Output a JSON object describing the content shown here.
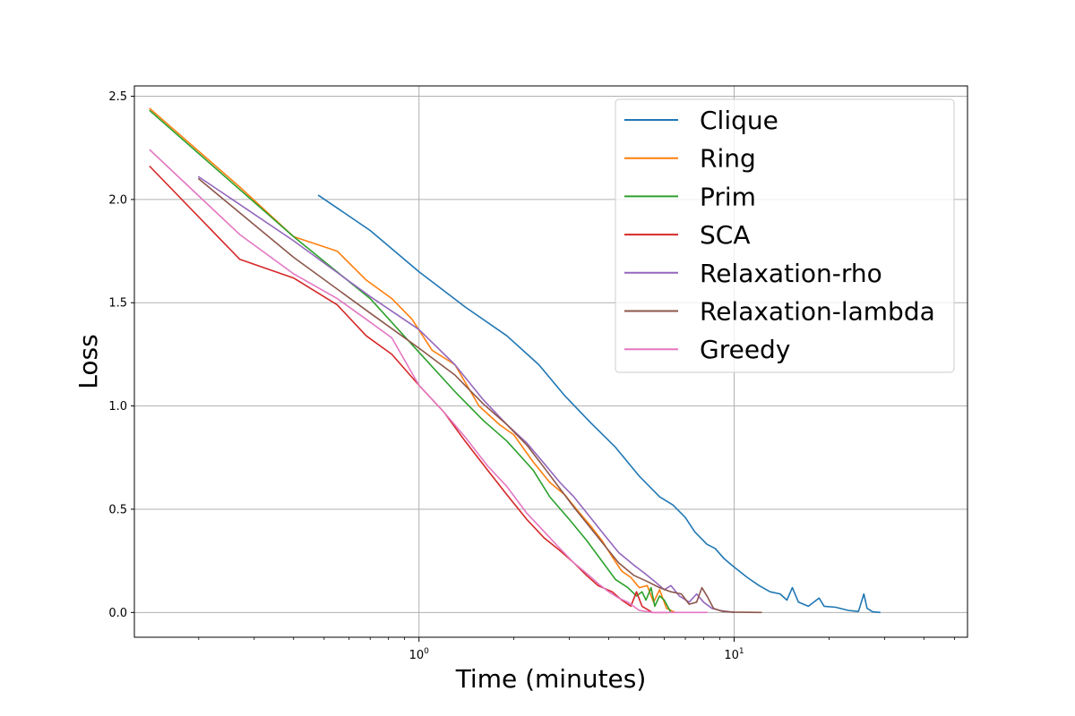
{
  "chart_data": {
    "type": "line",
    "xlabel": "Time (minutes)",
    "ylabel": "Loss",
    "xscale": "log",
    "xlim": [
      0.125,
      55
    ],
    "ylim": [
      -0.12,
      2.55
    ],
    "x_major_ticks": [
      {
        "value": 1,
        "base": "10",
        "exp": "0"
      },
      {
        "value": 10,
        "base": "10",
        "exp": "1"
      }
    ],
    "x_minor_ticks": [
      0.2,
      0.3,
      0.4,
      0.5,
      0.6,
      0.7,
      0.8,
      0.9,
      2,
      3,
      4,
      5,
      6,
      7,
      8,
      9,
      20,
      30,
      40,
      50
    ],
    "y_ticks": [
      {
        "value": 0.0,
        "label": "0.0"
      },
      {
        "value": 0.5,
        "label": "0.5"
      },
      {
        "value": 1.0,
        "label": "1.0"
      },
      {
        "value": 1.5,
        "label": "1.5"
      },
      {
        "value": 2.0,
        "label": "2.0"
      },
      {
        "value": 2.5,
        "label": "2.5"
      }
    ],
    "grid": true,
    "legend_position": "top-right",
    "series": [
      {
        "name": "Clique",
        "color": "#1f77b4",
        "points": [
          [
            0.48,
            2.02
          ],
          [
            0.7,
            1.85
          ],
          [
            1.0,
            1.65
          ],
          [
            1.4,
            1.48
          ],
          [
            1.9,
            1.34
          ],
          [
            2.4,
            1.2
          ],
          [
            2.9,
            1.05
          ],
          [
            3.5,
            0.92
          ],
          [
            4.2,
            0.8
          ],
          [
            5.0,
            0.66
          ],
          [
            5.8,
            0.56
          ],
          [
            6.4,
            0.52
          ],
          [
            7.0,
            0.46
          ],
          [
            7.5,
            0.39
          ],
          [
            8.2,
            0.33
          ],
          [
            8.7,
            0.31
          ],
          [
            9.3,
            0.26
          ],
          [
            10.0,
            0.22
          ],
          [
            11.0,
            0.17
          ],
          [
            12.0,
            0.13
          ],
          [
            13.0,
            0.1
          ],
          [
            14.0,
            0.09
          ],
          [
            14.7,
            0.06
          ],
          [
            15.3,
            0.12
          ],
          [
            16.0,
            0.05
          ],
          [
            17.2,
            0.03
          ],
          [
            18.6,
            0.07
          ],
          [
            19.3,
            0.03
          ],
          [
            21.0,
            0.025
          ],
          [
            23.0,
            0.01
          ],
          [
            24.8,
            0.005
          ],
          [
            25.8,
            0.09
          ],
          [
            26.4,
            0.02
          ],
          [
            27.5,
            0.003
          ],
          [
            29.0,
            0.0
          ]
        ]
      },
      {
        "name": "Ring",
        "color": "#ff7f0e",
        "points": [
          [
            0.14,
            2.44
          ],
          [
            0.27,
            2.06
          ],
          [
            0.4,
            1.82
          ],
          [
            0.55,
            1.75
          ],
          [
            0.68,
            1.61
          ],
          [
            0.82,
            1.52
          ],
          [
            0.95,
            1.42
          ],
          [
            1.1,
            1.27
          ],
          [
            1.3,
            1.2
          ],
          [
            1.55,
            1.0
          ],
          [
            1.8,
            0.91
          ],
          [
            2.0,
            0.86
          ],
          [
            2.3,
            0.73
          ],
          [
            2.6,
            0.63
          ],
          [
            2.9,
            0.57
          ],
          [
            3.2,
            0.49
          ],
          [
            3.5,
            0.42
          ],
          [
            3.8,
            0.35
          ],
          [
            4.1,
            0.27
          ],
          [
            4.4,
            0.2
          ],
          [
            4.7,
            0.17
          ],
          [
            5.0,
            0.12
          ],
          [
            5.3,
            0.13
          ],
          [
            5.55,
            0.05
          ],
          [
            5.8,
            0.11
          ],
          [
            6.1,
            0.02
          ],
          [
            6.5,
            0.0
          ]
        ]
      },
      {
        "name": "Prim",
        "color": "#2ca02c",
        "points": [
          [
            0.14,
            2.43
          ],
          [
            0.4,
            1.82
          ],
          [
            0.7,
            1.52
          ],
          [
            1.0,
            1.26
          ],
          [
            1.3,
            1.07
          ],
          [
            1.6,
            0.93
          ],
          [
            1.9,
            0.83
          ],
          [
            2.3,
            0.69
          ],
          [
            2.6,
            0.56
          ],
          [
            3.0,
            0.45
          ],
          [
            3.4,
            0.35
          ],
          [
            3.8,
            0.25
          ],
          [
            4.2,
            0.16
          ],
          [
            4.6,
            0.12
          ],
          [
            4.9,
            0.08
          ],
          [
            5.1,
            0.1
          ],
          [
            5.25,
            0.06
          ],
          [
            5.45,
            0.12
          ],
          [
            5.6,
            0.03
          ],
          [
            5.8,
            0.08
          ],
          [
            6.0,
            0.06
          ],
          [
            6.3,
            0.0
          ]
        ]
      },
      {
        "name": "SCA",
        "color": "#d62728",
        "points": [
          [
            0.14,
            2.16
          ],
          [
            0.27,
            1.71
          ],
          [
            0.4,
            1.62
          ],
          [
            0.55,
            1.49
          ],
          [
            0.68,
            1.34
          ],
          [
            0.82,
            1.25
          ],
          [
            1.0,
            1.1
          ],
          [
            1.2,
            0.97
          ],
          [
            1.4,
            0.83
          ],
          [
            1.65,
            0.69
          ],
          [
            1.9,
            0.57
          ],
          [
            2.2,
            0.45
          ],
          [
            2.5,
            0.36
          ],
          [
            2.8,
            0.3
          ],
          [
            3.1,
            0.24
          ],
          [
            3.4,
            0.18
          ],
          [
            3.7,
            0.13
          ],
          [
            4.1,
            0.1
          ],
          [
            4.4,
            0.06
          ],
          [
            4.7,
            0.03
          ],
          [
            4.9,
            0.1
          ],
          [
            5.1,
            0.03
          ],
          [
            5.5,
            0.0
          ],
          [
            6.2,
            0.0
          ]
        ]
      },
      {
        "name": "Relaxation-rho",
        "color": "#9467bd",
        "points": [
          [
            0.2,
            2.11
          ],
          [
            0.4,
            1.8
          ],
          [
            0.7,
            1.53
          ],
          [
            1.0,
            1.37
          ],
          [
            1.3,
            1.2
          ],
          [
            1.6,
            1.03
          ],
          [
            1.9,
            0.91
          ],
          [
            2.2,
            0.82
          ],
          [
            2.5,
            0.72
          ],
          [
            2.8,
            0.63
          ],
          [
            3.1,
            0.56
          ],
          [
            3.5,
            0.46
          ],
          [
            3.9,
            0.37
          ],
          [
            4.3,
            0.29
          ],
          [
            4.8,
            0.23
          ],
          [
            5.2,
            0.19
          ],
          [
            5.6,
            0.15
          ],
          [
            6.0,
            0.11
          ],
          [
            6.3,
            0.13
          ],
          [
            6.7,
            0.08
          ],
          [
            7.2,
            0.05
          ],
          [
            7.6,
            0.09
          ],
          [
            8.0,
            0.05
          ],
          [
            8.5,
            0.02
          ],
          [
            9.0,
            0.01
          ],
          [
            10.0,
            0.0
          ]
        ]
      },
      {
        "name": "Relaxation-lambda",
        "color": "#8c564b",
        "points": [
          [
            0.2,
            2.1
          ],
          [
            0.4,
            1.72
          ],
          [
            0.7,
            1.45
          ],
          [
            1.0,
            1.28
          ],
          [
            1.3,
            1.15
          ],
          [
            1.6,
            1.01
          ],
          [
            1.9,
            0.91
          ],
          [
            2.2,
            0.81
          ],
          [
            2.5,
            0.7
          ],
          [
            2.8,
            0.6
          ],
          [
            3.1,
            0.51
          ],
          [
            3.5,
            0.41
          ],
          [
            3.9,
            0.32
          ],
          [
            4.3,
            0.24
          ],
          [
            4.8,
            0.18
          ],
          [
            5.3,
            0.15
          ],
          [
            5.8,
            0.12
          ],
          [
            6.3,
            0.1
          ],
          [
            6.8,
            0.09
          ],
          [
            7.2,
            0.04
          ],
          [
            7.6,
            0.05
          ],
          [
            7.9,
            0.12
          ],
          [
            8.2,
            0.08
          ],
          [
            8.6,
            0.02
          ],
          [
            9.2,
            0.005
          ],
          [
            10.0,
            0.002
          ],
          [
            12.2,
            0.0
          ]
        ]
      },
      {
        "name": "Greedy",
        "color": "#e377c2",
        "points": [
          [
            0.14,
            2.24
          ],
          [
            0.27,
            1.83
          ],
          [
            0.4,
            1.64
          ],
          [
            0.55,
            1.52
          ],
          [
            0.68,
            1.42
          ],
          [
            0.82,
            1.33
          ],
          [
            1.0,
            1.1
          ],
          [
            1.2,
            0.97
          ],
          [
            1.4,
            0.85
          ],
          [
            1.65,
            0.71
          ],
          [
            1.9,
            0.61
          ],
          [
            2.2,
            0.48
          ],
          [
            2.5,
            0.39
          ],
          [
            2.8,
            0.31
          ],
          [
            3.1,
            0.24
          ],
          [
            3.4,
            0.19
          ],
          [
            3.7,
            0.14
          ],
          [
            4.0,
            0.1
          ],
          [
            4.3,
            0.07
          ],
          [
            4.6,
            0.05
          ],
          [
            5.0,
            0.01
          ],
          [
            5.5,
            0.0
          ],
          [
            8.2,
            0.0
          ]
        ]
      }
    ]
  }
}
